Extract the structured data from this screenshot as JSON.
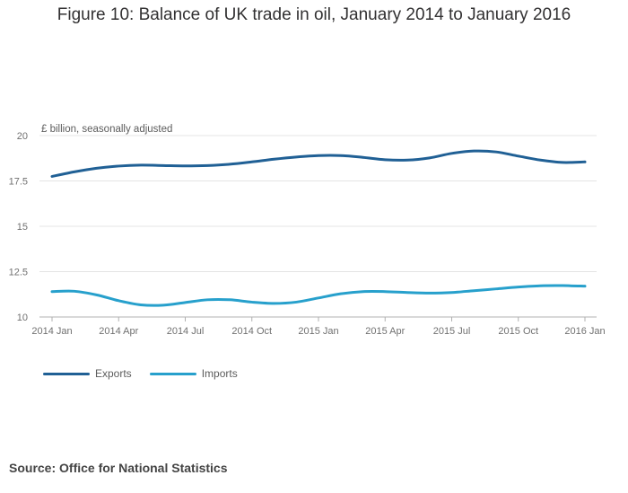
{
  "chart_data": {
    "type": "line",
    "title": "Figure 10: Balance of UK trade in oil, January 2014 to January 2016",
    "ylabel": "£ billion, seasonally adjusted",
    "xlabel": "",
    "ylim": [
      10,
      20
    ],
    "yticks": [
      "10",
      "12.5",
      "15",
      "17.5",
      "20"
    ],
    "ytick_values": [
      10,
      12.5,
      15,
      17.5,
      20
    ],
    "x": [
      "2014 Jan",
      "2014 Feb",
      "2014 Mar",
      "2014 Apr",
      "2014 May",
      "2014 Jun",
      "2014 Jul",
      "2014 Aug",
      "2014 Sep",
      "2014 Oct",
      "2014 Nov",
      "2014 Dec",
      "2015 Jan",
      "2015 Feb",
      "2015 Mar",
      "2015 Apr",
      "2015 May",
      "2015 Jun",
      "2015 Jul",
      "2015 Aug",
      "2015 Sep",
      "2015 Oct",
      "2015 Nov",
      "2015 Dec",
      "2016 Jan"
    ],
    "xticks": [
      {
        "label": "2014 Jan",
        "index": 0
      },
      {
        "label": "2014 Apr",
        "index": 3
      },
      {
        "label": "2014 Jul",
        "index": 6
      },
      {
        "label": "2014 Oct",
        "index": 9
      },
      {
        "label": "2015 Jan",
        "index": 12
      },
      {
        "label": "2015 Apr",
        "index": 15
      },
      {
        "label": "2015 Jul",
        "index": 18
      },
      {
        "label": "2015 Oct",
        "index": 21
      },
      {
        "label": "2016 Jan",
        "index": 24
      }
    ],
    "grid": true,
    "legend_position": "bottom-left",
    "series": [
      {
        "name": "Exports",
        "color": "#206095",
        "values": [
          17.75,
          18.0,
          18.2,
          18.32,
          18.37,
          18.35,
          18.33,
          18.35,
          18.42,
          18.55,
          18.7,
          18.82,
          18.9,
          18.9,
          18.8,
          18.67,
          18.65,
          18.77,
          19.02,
          19.15,
          19.1,
          18.87,
          18.65,
          18.52,
          18.55
        ]
      },
      {
        "name": "Imports",
        "color": "#27a0cc",
        "values": [
          11.4,
          11.42,
          11.22,
          10.9,
          10.67,
          10.65,
          10.8,
          10.95,
          10.95,
          10.82,
          10.75,
          10.82,
          11.05,
          11.28,
          11.4,
          11.4,
          11.35,
          11.32,
          11.35,
          11.45,
          11.55,
          11.65,
          11.72,
          11.73,
          11.7
        ]
      }
    ],
    "source": "Source: Office for National Statistics"
  }
}
